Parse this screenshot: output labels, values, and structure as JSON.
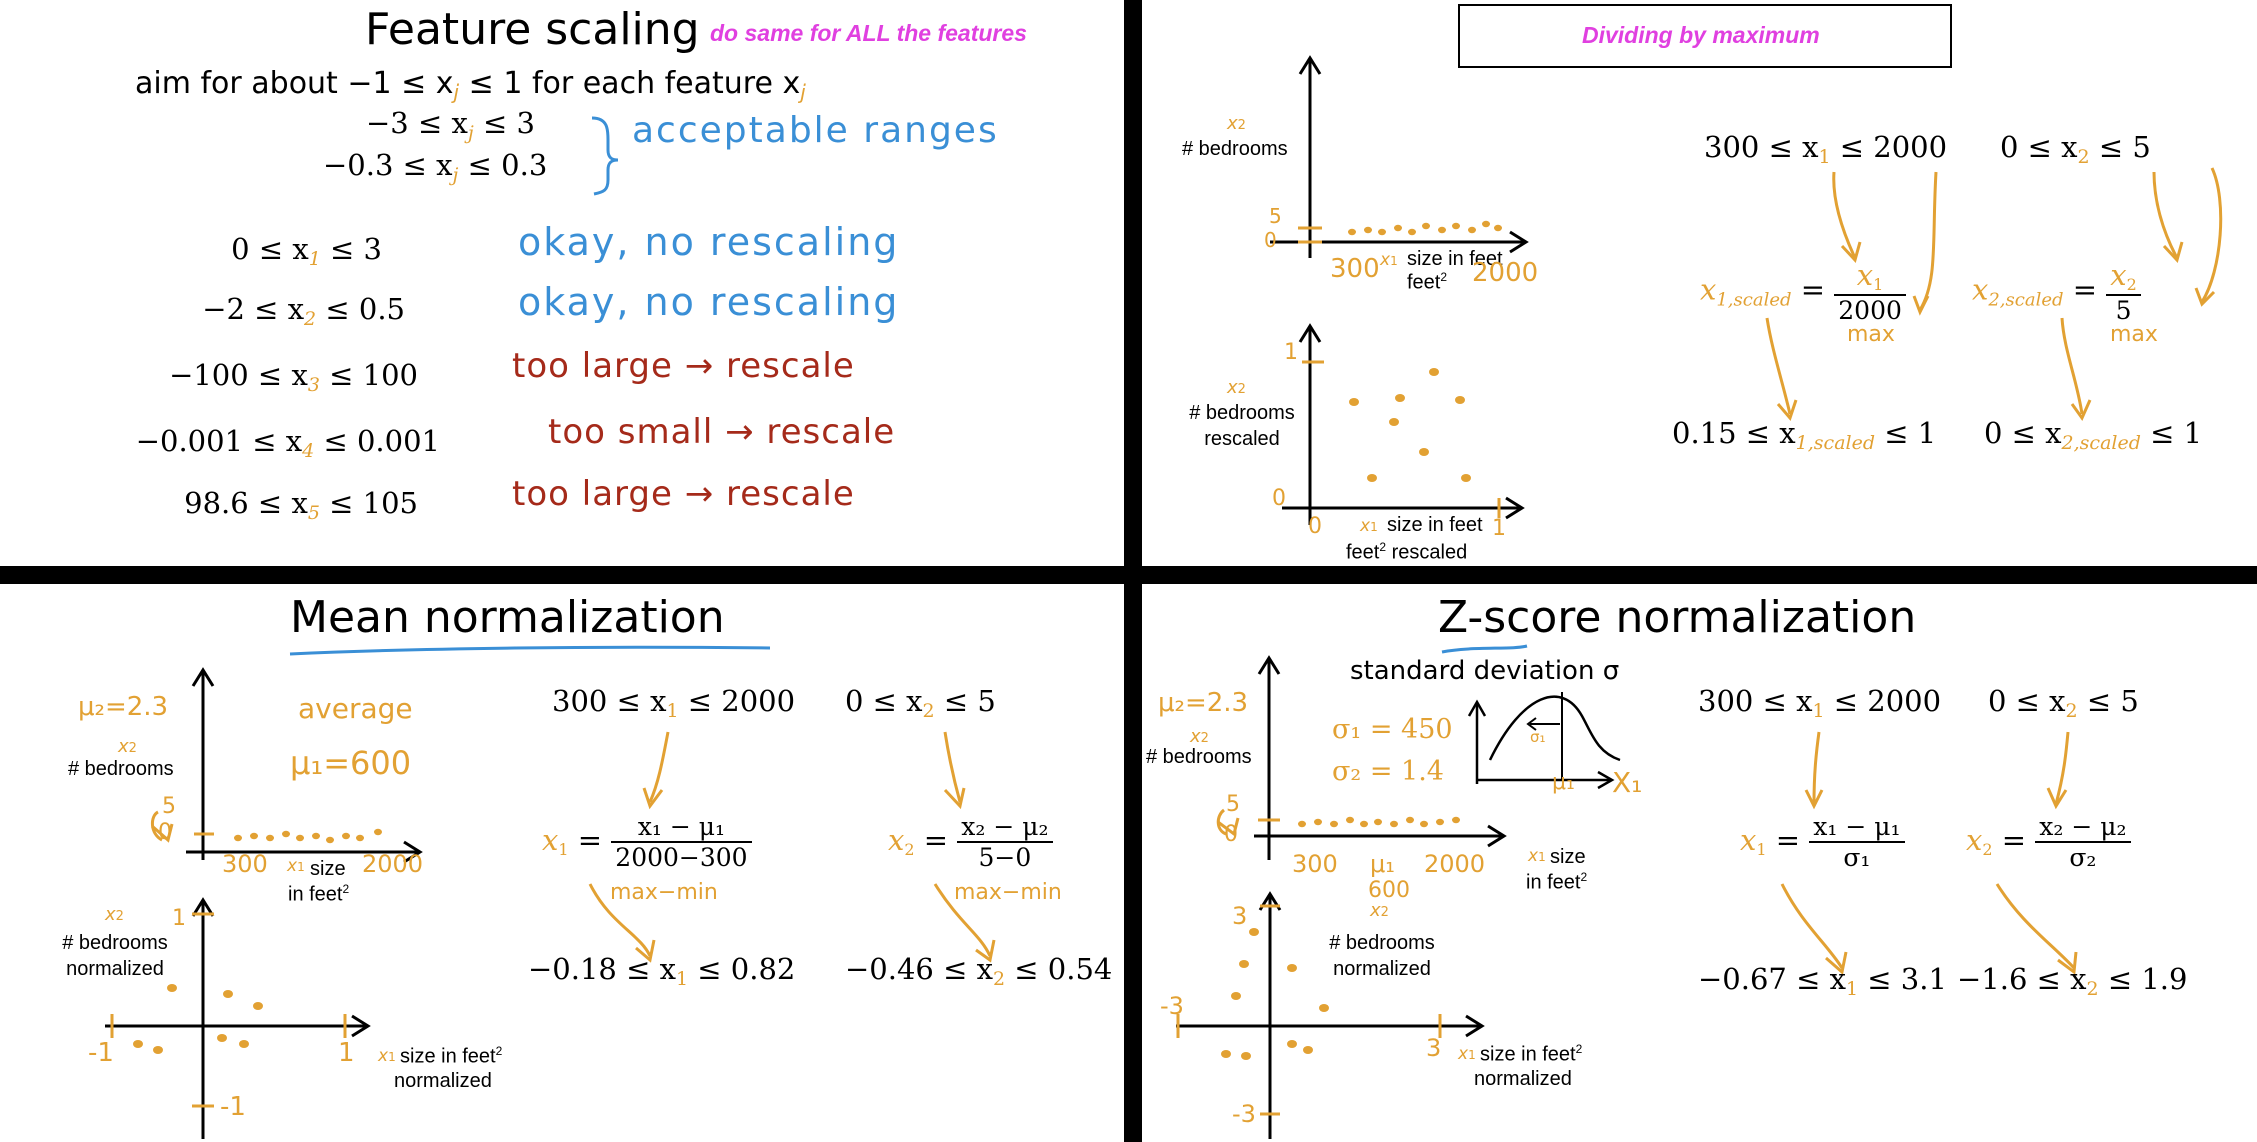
{
  "panel1": {
    "title": "Feature scaling",
    "note": "do same for ALL the features",
    "aim": "aim for about −1 ≤ x",
    "aim_sub": "j",
    "aim_tail": " ≤ 1 for each feature x",
    "aim_tail_sub": "j",
    "range_a_pre": "−3 ≤ x",
    "range_a_post": " ≤ 3",
    "range_b_pre": "−0.3 ≤ x",
    "range_b_post": " ≤ 0.3",
    "acceptable": "acceptable ranges",
    "rows": [
      {
        "pre": "0 ≤ x",
        "sub": "1",
        "post": " ≤ 3",
        "note": "okay, no rescaling"
      },
      {
        "pre": "−2 ≤ x",
        "sub": "2",
        "post": " ≤ 0.5",
        "note": "okay, no rescaling"
      },
      {
        "pre": "−100 ≤ x",
        "sub": "3",
        "post": " ≤ 100",
        "note": "too large → rescale"
      },
      {
        "pre": "−0.001 ≤ x",
        "sub": "4",
        "post": " ≤ 0.001",
        "note": "too small → rescale"
      },
      {
        "pre": "98.6 ≤ x",
        "sub": "5",
        "post": " ≤ 105",
        "note": "too large → rescale"
      }
    ]
  },
  "panel2": {
    "title": "Dividing by maximum",
    "x2": "x",
    "x2_sub": "2",
    "bedrooms": "# bedrooms",
    "bedrooms_rescaled": "# bedrooms rescaled",
    "tick5": "5",
    "tick0": "0",
    "tick300": "300",
    "tick2000": "2000",
    "x1_size": "size in feet",
    "x1_size_rescaled": "size in feet",
    "rescaled": "rescaled",
    "tick1": "1",
    "r1_pre": "300 ≤ x",
    "r1_post": " ≤ 2000",
    "r2_pre": "0 ≤ x",
    "r2_post": " ≤ 5",
    "x1scaled": "x",
    "scaled": "1,scaled",
    "scaled2": "2,scaled",
    "den1": "2000",
    "den2": "5",
    "max": "max",
    "res1_pre": "0.15 ≤ x",
    "res1_post": " ≤ 1",
    "res2_pre": "0 ≤ x",
    "res2_post": " ≤ 1"
  },
  "panel3": {
    "title": "Mean normalization",
    "mu2": "μ₂=2.3",
    "average": "average",
    "mu1": "μ₁=600",
    "bedrooms": "# bedrooms",
    "bedrooms_norm": "# bedrooms normalized",
    "size": "size",
    "in_feet": "in feet",
    "size_norm": "size in feet",
    "normalized": "normalized",
    "r1_pre": "300 ≤ x",
    "r1_post": " ≤ 2000",
    "r2_pre": "0 ≤ x",
    "r2_post": " ≤ 5",
    "num1": "x₁ − μ₁",
    "den1": "2000−300",
    "num2": "x₂ − μ₂",
    "den2": "5−0",
    "maxmin": "max−min",
    "res1": "−0.18 ≤ x",
    "res1_post": " ≤ 0.82",
    "res2": "−0.46 ≤ x",
    "res2_post": " ≤ 0.54",
    "tick_neg1": "-1",
    "tick_pos1": "1",
    "tick300": "300",
    "tick2000": "2000",
    "tick5": "5",
    "tick0": "0"
  },
  "panel4": {
    "title_a": "Z-score",
    "title_b": " normalization",
    "stddev": "standard deviation σ",
    "sigma1": "σ₁ = 450",
    "sigma2": "σ₂ = 1.4",
    "mu2": "μ₂=2.3",
    "bedrooms": "# bedrooms",
    "bedrooms_norm": "# bedrooms normalized",
    "size": "size",
    "in_feet": "in feet",
    "size_norm": "size in feet",
    "normalized": "normalized",
    "r1_pre": "300 ≤ x",
    "r1_post": " ≤ 2000",
    "r2_pre": "0 ≤ x",
    "r2_post": " ≤ 5",
    "num1": "x₁ − μ₁",
    "den1": "σ₁",
    "num2": "x₂ − μ₂",
    "den2": "σ₂",
    "res1": "−0.67 ≤ x",
    "res1_post": " ≤ 3.1",
    "res2": "−1.6 ≤ x",
    "res2_post": " ≤ 1.9",
    "tick300": "300",
    "tick_mu1": "μ₁",
    "tick600": "600",
    "tick2000": "2000",
    "tick3": "3",
    "tick_neg3": "-3",
    "tick5": "5",
    "tick0": "0",
    "curve_mu1": "μ₁",
    "curve_x1": "X₁",
    "curve_sigma1": "σ₁"
  }
}
